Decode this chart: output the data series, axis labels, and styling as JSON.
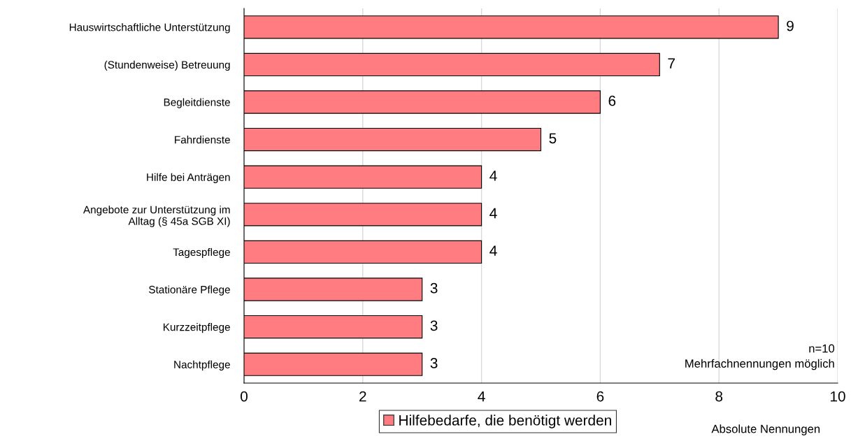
{
  "chart_data": {
    "type": "bar",
    "orientation": "horizontal",
    "categories": [
      "Hauswirtschaftliche Unterstützung",
      "(Stundenweise) Betreuung",
      "Begleitdienste",
      "Fahrdienste",
      "Hilfe bei Anträgen",
      "Angebote zur Unterstützung im\nAlltag (§ 45a SGB XI)",
      "Tagespflege",
      "Stationäre Pflege",
      "Kurzzeitpflege",
      "Nachtpflege"
    ],
    "series": [
      {
        "name": "Hilfebedarfe, die benötigt werden",
        "color": "#ff7c80",
        "values": [
          9,
          7,
          6,
          5,
          4,
          4,
          4,
          3,
          3,
          3
        ]
      }
    ],
    "xlim": [
      0,
      10
    ],
    "xticks": [
      0,
      2,
      4,
      6,
      8,
      10
    ],
    "xlabel": "Absolute Nennungen",
    "grid": "x",
    "legend": "bottom",
    "data_labels": true,
    "annotations": [
      "n=10",
      "Mehrfachnennungen möglich"
    ]
  }
}
